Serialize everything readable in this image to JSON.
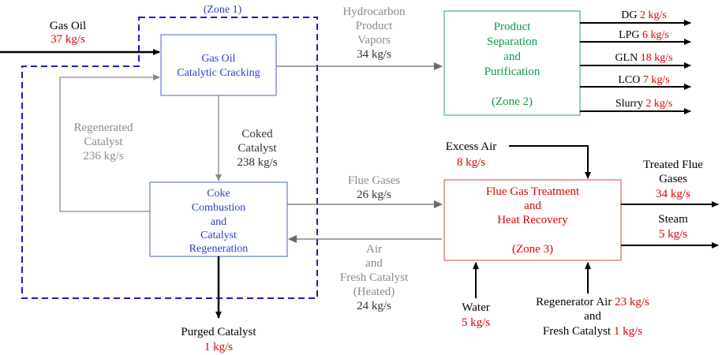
{
  "colors": {
    "black": "#000000",
    "red": "#e00000",
    "blue_text": "#2b3fc9",
    "blue_box": "#4a5fd6",
    "blue_dash": "#1c1cc8",
    "green": "#0a9a4a",
    "teal_box": "#2e9a78",
    "red_box": "#d84040",
    "gray": "#8a8a8a"
  },
  "zone1": {
    "label": "(Zone 1)"
  },
  "feed": {
    "name": "Gas Oil",
    "rate": "37 kg/s"
  },
  "cracking": {
    "line1": "Gas Oil",
    "line2": "Catalytic Cracking"
  },
  "regen": {
    "line1": "Coke",
    "line2": "Combustion",
    "line3": "and",
    "line4": "Catalyst",
    "line5": "Regeneration"
  },
  "regenerated_catalyst": {
    "line1": "Regenerated",
    "line2": "Catalyst",
    "line3": "236 kg/s"
  },
  "coked_catalyst": {
    "line1": "Coked",
    "line2": "Catalyst",
    "line3": "238 kg/s"
  },
  "purged_catalyst": {
    "name": "Purged Catalyst",
    "rate": "1 kg/s"
  },
  "vapors": {
    "line1": "Hydrocarbon",
    "line2": "Product",
    "line3": "Vapors",
    "line4": "34 kg/s"
  },
  "separation": {
    "line1": "Product",
    "line2": "Separation",
    "line3": "and",
    "line4": "Purification",
    "zone": "(Zone 2)"
  },
  "products": [
    {
      "name": "DG",
      "rate": "2 kg/s"
    },
    {
      "name": "LPG",
      "rate": "6 kg/s"
    },
    {
      "name": "GLN",
      "rate": "18 kg/s"
    },
    {
      "name": "LCO",
      "rate": "7 kg/s"
    },
    {
      "name": "Slurry",
      "rate": "2 kg/s"
    }
  ],
  "flue_gases": {
    "line1": "Flue Gases",
    "line2": "26 kg/s"
  },
  "air_return": {
    "line1": "Air",
    "line2": "and",
    "line3": "Fresh Catalyst",
    "line4": "(Heated)",
    "line5": "24 kg/s"
  },
  "treatment": {
    "line1": "Flue Gas Treatment",
    "line2": "and",
    "line3": "Heat Recovery",
    "zone": "(Zone 3)"
  },
  "excess_air": {
    "name": "Excess Air",
    "rate": "8 kg/s"
  },
  "treated_flue": {
    "line1": "Treated Flue",
    "line2": "Gases",
    "rate": "34 kg/s"
  },
  "steam": {
    "name": "Steam",
    "rate": "5 kg/s"
  },
  "water": {
    "name": "Water",
    "rate": "5 kg/s"
  },
  "regen_air": {
    "name": "Regenerator Air",
    "rate": "23 kg/s",
    "and": "and",
    "name2": "Fresh Catalyst",
    "rate2": "1 kg/s"
  }
}
